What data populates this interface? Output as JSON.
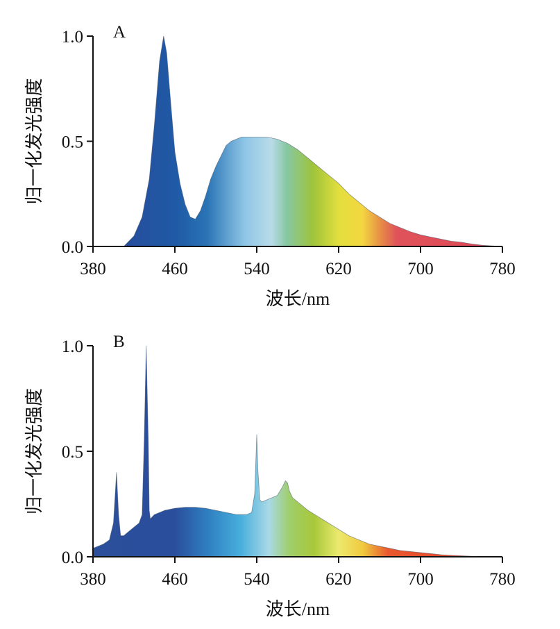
{
  "chart_data": [
    {
      "type": "area",
      "panel": "A",
      "xlabel": "波长/nm",
      "ylabel": "归一化发光强度",
      "xlim": [
        380,
        780
      ],
      "ylim": [
        0,
        1.0
      ],
      "xticks": [
        "380",
        "460",
        "540",
        "620",
        "700",
        "780"
      ],
      "yticks": [
        "0.0",
        "0.5",
        "1.0"
      ],
      "grid": false,
      "fill": "spectral rainbow gradient",
      "x": [
        410,
        420,
        428,
        435,
        440,
        445,
        449,
        452,
        456,
        460,
        465,
        470,
        475,
        480,
        485,
        490,
        495,
        500,
        505,
        510,
        515,
        520,
        525,
        530,
        540,
        550,
        560,
        570,
        580,
        590,
        600,
        610,
        620,
        630,
        640,
        650,
        660,
        670,
        680,
        690,
        700,
        710,
        720,
        730,
        740,
        750,
        760,
        770,
        780
      ],
      "y": [
        0.0,
        0.05,
        0.14,
        0.32,
        0.58,
        0.88,
        1.0,
        0.92,
        0.68,
        0.45,
        0.3,
        0.2,
        0.14,
        0.13,
        0.17,
        0.24,
        0.32,
        0.38,
        0.43,
        0.48,
        0.5,
        0.51,
        0.52,
        0.52,
        0.52,
        0.52,
        0.51,
        0.49,
        0.46,
        0.42,
        0.38,
        0.34,
        0.3,
        0.25,
        0.21,
        0.17,
        0.14,
        0.11,
        0.09,
        0.07,
        0.055,
        0.045,
        0.035,
        0.025,
        0.02,
        0.012,
        0.006,
        0.003,
        0.0
      ]
    },
    {
      "type": "area",
      "panel": "B",
      "xlabel": "波长/nm",
      "ylabel": "归一化发光强度",
      "xlim": [
        380,
        780
      ],
      "ylim": [
        0,
        1.0
      ],
      "xticks": [
        "380",
        "460",
        "540",
        "620",
        "700",
        "780"
      ],
      "yticks": [
        "0.0",
        "0.5",
        "1.0"
      ],
      "grid": false,
      "fill": "spectral rainbow gradient",
      "x": [
        380,
        390,
        396,
        400,
        403,
        405,
        407,
        410,
        415,
        420,
        425,
        428,
        430,
        432,
        434,
        435,
        436,
        438,
        440,
        445,
        450,
        460,
        470,
        480,
        490,
        500,
        510,
        520,
        530,
        535,
        538,
        540,
        541,
        543,
        545,
        550,
        555,
        560,
        565,
        568,
        570,
        572,
        575,
        580,
        590,
        600,
        610,
        620,
        630,
        640,
        650,
        660,
        670,
        680,
        690,
        700,
        710,
        720,
        730,
        740,
        750,
        760,
        770,
        780
      ],
      "y": [
        0.04,
        0.06,
        0.08,
        0.16,
        0.4,
        0.2,
        0.1,
        0.1,
        0.12,
        0.14,
        0.16,
        0.2,
        0.55,
        1.0,
        0.55,
        0.22,
        0.18,
        0.19,
        0.2,
        0.21,
        0.22,
        0.23,
        0.235,
        0.235,
        0.23,
        0.22,
        0.21,
        0.2,
        0.2,
        0.21,
        0.3,
        0.58,
        0.42,
        0.27,
        0.26,
        0.27,
        0.28,
        0.29,
        0.33,
        0.36,
        0.35,
        0.31,
        0.28,
        0.26,
        0.22,
        0.19,
        0.16,
        0.13,
        0.1,
        0.08,
        0.06,
        0.05,
        0.04,
        0.03,
        0.025,
        0.02,
        0.015,
        0.01,
        0.007,
        0.005,
        0.003,
        0.002,
        0.001,
        0.0
      ]
    }
  ]
}
